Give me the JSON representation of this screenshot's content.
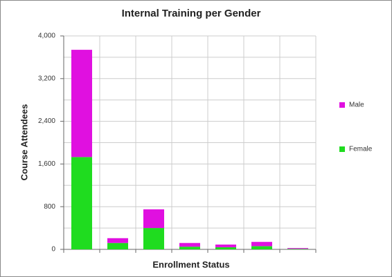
{
  "chart_data": {
    "type": "stacked_bar",
    "title": "Internal Training per Gender",
    "x_label": "Enrollment Status",
    "y_label": "Course Attendees",
    "categories": [
      null,
      null,
      null,
      null,
      null,
      null,
      null
    ],
    "series": [
      {
        "name": "Female",
        "color": "#1fdc1f",
        "values": [
          1730,
          120,
          400,
          50,
          40,
          60,
          10
        ]
      },
      {
        "name": "Male",
        "color": "#e010e0",
        "values": [
          2010,
          90,
          350,
          70,
          50,
          80,
          15
        ]
      }
    ],
    "ylim": [
      0,
      4000
    ],
    "yticks": [
      0,
      800,
      {
        "value": 1600,
        "label": "1,600"
      },
      {
        "value": 2400,
        "label": "2,400"
      },
      {
        "value": 3200,
        "label": "3,200"
      },
      {
        "value": 4000,
        "label": "4,000"
      }
    ],
    "minor_yticks": [
      400,
      1200,
      2000,
      2800,
      3600
    ],
    "grid": true,
    "legend": "right"
  }
}
